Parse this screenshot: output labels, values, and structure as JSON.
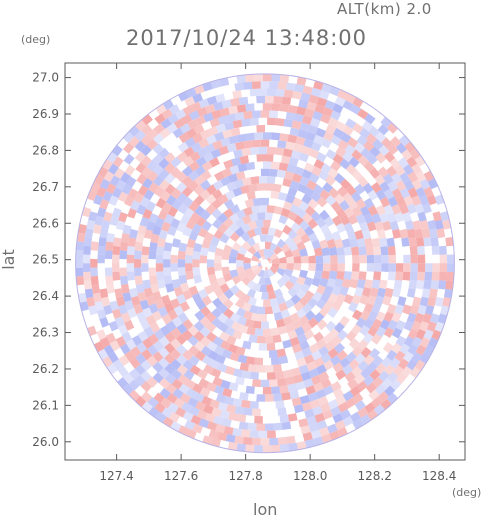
{
  "header": {
    "altitude_label": "ALT(km) 2.0",
    "timestamp": "2017/10/24 13:48:00"
  },
  "colors": {
    "positive": "#f4a3a3",
    "negative": "#aeb6f4",
    "axis": "#5a5a5a"
  },
  "chart_data": {
    "type": "heatmap",
    "title": "2017/10/24 13:48:00",
    "subtitle": "ALT(km) 2.0",
    "xlabel": "lon",
    "ylabel": "lat",
    "x_unit": "(deg)",
    "y_unit": "(deg)",
    "xlim": [
      127.24,
      128.48
    ],
    "ylim": [
      25.95,
      27.04
    ],
    "xticks": [
      "127.4",
      "127.6",
      "127.8",
      "128.0",
      "128.2",
      "128.4"
    ],
    "xtick_values": [
      127.4,
      127.6,
      127.8,
      128.0,
      128.2,
      128.4
    ],
    "yticks": [
      "26.0",
      "26.1",
      "26.2",
      "26.3",
      "26.4",
      "26.5",
      "26.6",
      "26.7",
      "26.8",
      "26.9",
      "27.0"
    ],
    "ytick_values": [
      26.0,
      26.1,
      26.2,
      26.3,
      26.4,
      26.5,
      26.6,
      26.7,
      26.8,
      26.9,
      27.0
    ],
    "radar_center": {
      "lon": 127.86,
      "lat": 26.49
    },
    "radar_range_deg_lat": 0.52,
    "field": "radar scan (positive/negative values shown red/blue), circular coverage"
  }
}
